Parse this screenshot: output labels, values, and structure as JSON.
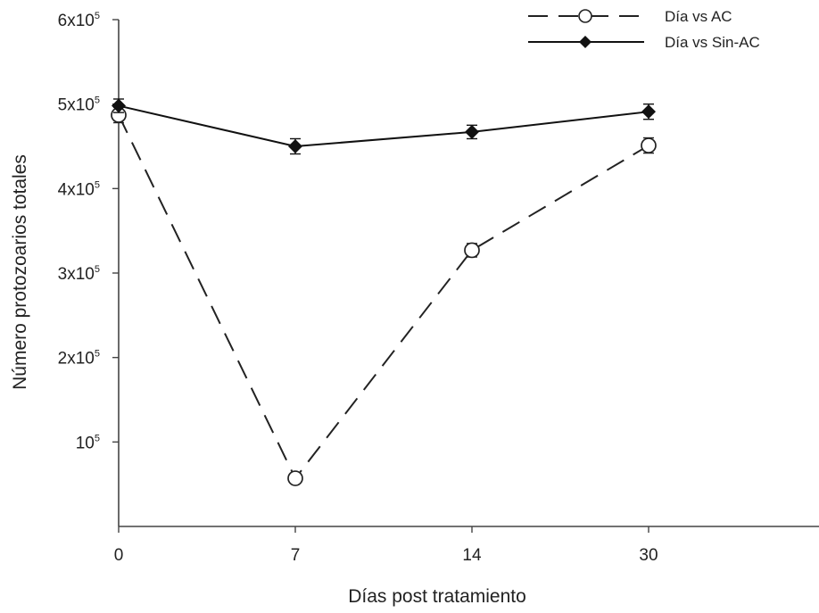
{
  "chart_data": {
    "type": "line",
    "title": "",
    "xlabel": "Días post tratamiento",
    "ylabel": "Número protozoarios totales",
    "categories": [
      "0",
      "7",
      "14",
      "30"
    ],
    "x": [
      0,
      7,
      14,
      30
    ],
    "ylim": [
      0,
      600000
    ],
    "yticks": [
      {
        "value": 100000,
        "base": "10",
        "exp": "5"
      },
      {
        "value": 200000,
        "base": "2x10",
        "exp": "5"
      },
      {
        "value": 300000,
        "base": "3x10",
        "exp": "5"
      },
      {
        "value": 400000,
        "base": "4x10",
        "exp": "5"
      },
      {
        "value": 500000,
        "base": "5x10",
        "exp": "5"
      },
      {
        "value": 600000,
        "base": "6x10",
        "exp": "5"
      }
    ],
    "grid": false,
    "legend_position": "top-right",
    "series": [
      {
        "name": "Día vs AC",
        "values": [
          487000,
          57000,
          327000,
          451000
        ],
        "errors": [
          9000,
          6000,
          8000,
          9000
        ],
        "style": "dashed",
        "marker": "open-circle",
        "color": "#222222"
      },
      {
        "name": "Día vs Sin-AC",
        "values": [
          498000,
          450000,
          467000,
          491000
        ],
        "errors": [
          8000,
          9000,
          8000,
          9000
        ],
        "style": "solid",
        "marker": "filled-diamond",
        "color": "#111111"
      }
    ]
  }
}
